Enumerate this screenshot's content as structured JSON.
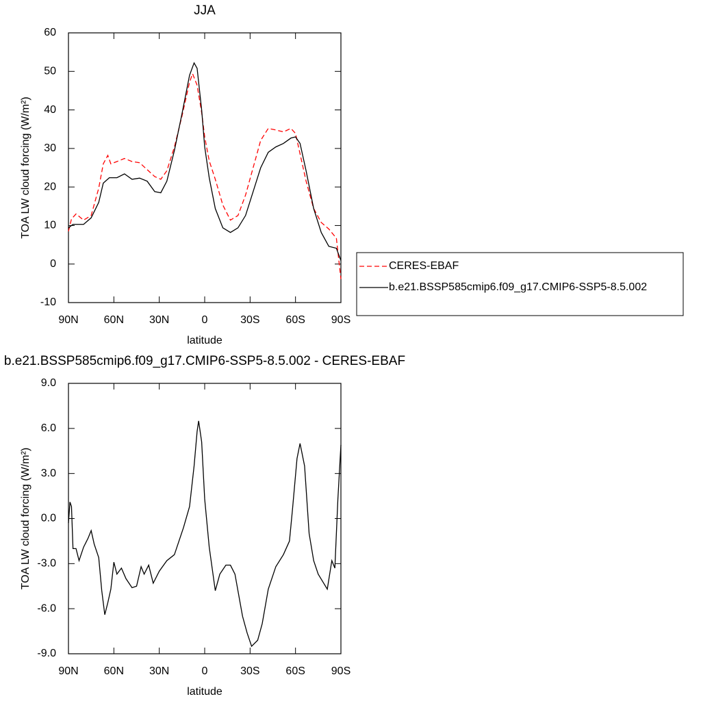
{
  "chart_data": [
    {
      "type": "line",
      "title": "JJA",
      "xlabel": "latitude",
      "ylabel": "TOA LW cloud forcing (W/m²)",
      "xlim": [
        90,
        -90
      ],
      "ylim": [
        -10,
        60
      ],
      "xticks": [
        {
          "value": 90,
          "label": "90N"
        },
        {
          "value": 60,
          "label": "60N"
        },
        {
          "value": 30,
          "label": "30N"
        },
        0,
        {
          "value": -30,
          "label": "30S"
        },
        {
          "value": -60,
          "label": "60S"
        },
        {
          "value": -90,
          "label": "90S"
        }
      ],
      "yticks": [
        -10,
        0,
        10,
        20,
        30,
        40,
        50,
        60
      ],
      "legend": "right",
      "series": [
        {
          "name": "CERES-EBAF",
          "color": "#ff0000",
          "linestyle": "dashed",
          "x": [
            90,
            88,
            85,
            80,
            75,
            70,
            67,
            64,
            62,
            58,
            53,
            48,
            43,
            38,
            33,
            29,
            25,
            20,
            15,
            10,
            8,
            5,
            2,
            0,
            -3,
            -7,
            -12,
            -17,
            -22,
            -27,
            -32,
            -37,
            -42,
            -47,
            -52,
            -57,
            -60,
            -63,
            -67,
            -72,
            -77,
            -82,
            -87,
            -90
          ],
          "values": [
            8.5,
            11.7,
            13,
            11.4,
            12.6,
            19.7,
            26,
            28.2,
            26,
            26.6,
            27.4,
            26.6,
            26.3,
            24.5,
            22.7,
            22,
            24.2,
            30.4,
            38.4,
            47.2,
            49.4,
            46.4,
            39.3,
            33,
            26.8,
            22,
            15.3,
            11.4,
            12.6,
            17.9,
            25,
            32.1,
            35.2,
            34.8,
            34.3,
            35.2,
            33.9,
            28.6,
            21.5,
            14.4,
            10.8,
            9.1,
            6.7,
            -3.9
          ]
        },
        {
          "name": "b.e21.BSSP585cmip6.f09_g17.CMIP6-SSP5-8.5.002",
          "color": "#000000",
          "linestyle": "solid",
          "x": [
            90,
            87,
            80,
            75,
            70,
            67,
            63,
            58,
            53,
            48,
            43,
            38,
            33,
            29,
            25,
            20,
            15,
            10,
            7,
            5,
            2,
            0,
            -3,
            -7,
            -12,
            -17,
            -22,
            -27,
            -32,
            -37,
            -42,
            -47,
            -52,
            -57,
            -60,
            -63,
            -67,
            -72,
            -77,
            -82,
            -87,
            -90
          ],
          "values": [
            9.4,
            10.3,
            10.3,
            12,
            16,
            21,
            22.4,
            22.4,
            23.4,
            22,
            22.3,
            21.5,
            18.8,
            18.5,
            21.5,
            29.5,
            39,
            49,
            52.2,
            50.8,
            40,
            30.4,
            22.4,
            14.4,
            9.4,
            8.2,
            9.4,
            12.6,
            18.8,
            25,
            29,
            30.4,
            31.3,
            32.7,
            33,
            31.3,
            24.2,
            14.4,
            8.2,
            4.6,
            4.1,
            0.9
          ]
        }
      ]
    },
    {
      "type": "line",
      "title": "b.e21.BSSP585cmip6.f09_g17.CMIP6-SSP5-8.5.002 - CERES-EBAF",
      "xlabel": "latitude",
      "ylabel": "TOA LW cloud forcing (W/m²)",
      "xlim": [
        90,
        -90
      ],
      "ylim": [
        -9,
        9
      ],
      "xticks": [
        {
          "value": 90,
          "label": "90N"
        },
        {
          "value": 60,
          "label": "60N"
        },
        {
          "value": 30,
          "label": "30N"
        },
        0,
        {
          "value": -30,
          "label": "30S"
        },
        {
          "value": -60,
          "label": "60S"
        },
        {
          "value": -90,
          "label": "90S"
        }
      ],
      "yticks": [
        {
          "value": -9,
          "label": "-9.0"
        },
        {
          "value": -6,
          "label": "-6.0"
        },
        {
          "value": -3,
          "label": "-3.0"
        },
        {
          "value": 0,
          "label": "0.0"
        },
        {
          "value": 3,
          "label": "3.0"
        },
        {
          "value": 6,
          "label": "6.0"
        },
        {
          "value": 9,
          "label": "9.0"
        }
      ],
      "color": "#000000",
      "x": [
        90,
        89,
        88,
        87,
        85,
        83,
        80,
        77,
        75,
        73,
        70,
        68,
        66,
        64,
        62,
        60,
        58,
        55,
        52,
        48,
        45,
        42,
        40,
        37,
        34,
        30,
        25,
        20,
        17,
        14,
        10,
        7,
        5,
        4,
        2,
        0,
        -3,
        -7,
        -10,
        -14,
        -17,
        -20,
        -25,
        -28,
        -31,
        -35,
        -38,
        -42,
        -47,
        -52,
        -56,
        -58,
        -61,
        -63,
        -66,
        -69,
        -72,
        -75,
        -78,
        -81,
        -84,
        -86,
        -88,
        -90
      ],
      "values": [
        -0.3,
        1.1,
        0.8,
        -2,
        -2,
        -2.8,
        -1.9,
        -1.3,
        -0.8,
        -1.7,
        -2.6,
        -4.8,
        -6.4,
        -5.6,
        -4.7,
        -2.9,
        -3.7,
        -3.3,
        -4,
        -4.6,
        -4.5,
        -3.2,
        -3.7,
        -3.1,
        -4.3,
        -3.5,
        -2.8,
        -2.4,
        -1.5,
        -0.6,
        0.8,
        3.5,
        5.8,
        6.5,
        5.1,
        1.3,
        -1.9,
        -4.8,
        -3.7,
        -3.1,
        -3.1,
        -3.7,
        -6.5,
        -7.6,
        -8.5,
        -8.1,
        -7,
        -4.7,
        -3.2,
        -2.4,
        -1.5,
        0.6,
        4,
        5,
        3.5,
        -1,
        -2.8,
        -3.7,
        -4.2,
        -4.7,
        -2.8,
        -3.3,
        1.3,
        4.9
      ]
    }
  ]
}
